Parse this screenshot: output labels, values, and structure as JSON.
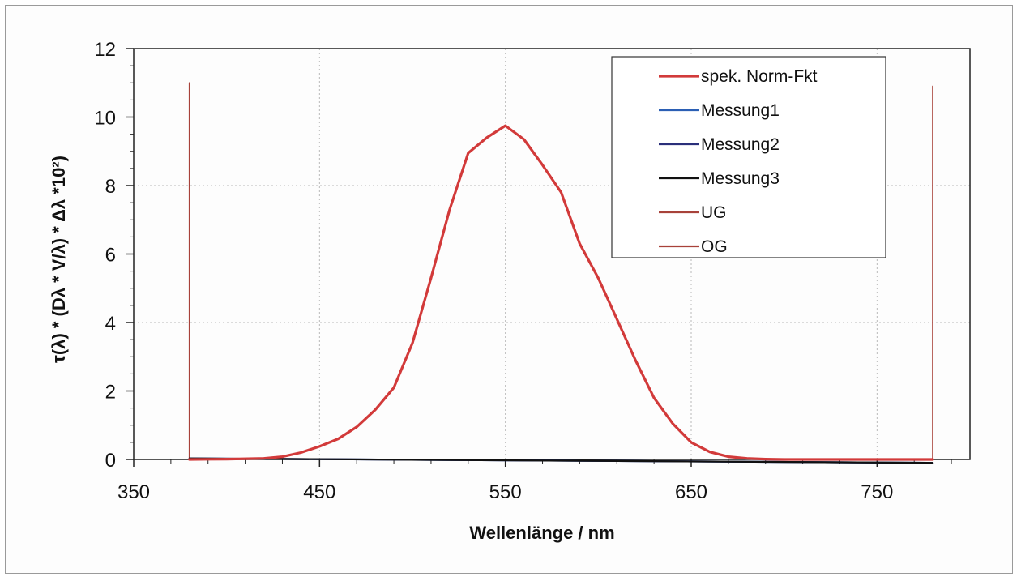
{
  "chart_data": {
    "type": "line",
    "title": "",
    "xlabel": "Wellenlänge / nm",
    "ylabel": "τ(λ) * (Dλ * V/λ) * Δλ *10²)",
    "xlim": [
      350,
      800
    ],
    "ylim": [
      0,
      12
    ],
    "x_ticks": [
      "350",
      "450",
      "550",
      "650",
      "750"
    ],
    "y_ticks": [
      "0",
      "2",
      "4",
      "6",
      "8",
      "10",
      "12"
    ],
    "grid": true,
    "legend_position": "top-right",
    "series": [
      {
        "name": "spek. Norm-Fkt",
        "color": "#d23a3a",
        "x": [
          380,
          400,
          420,
          430,
          440,
          450,
          460,
          470,
          480,
          490,
          500,
          510,
          520,
          530,
          540,
          550,
          560,
          570,
          580,
          590,
          600,
          610,
          620,
          630,
          640,
          650,
          660,
          670,
          680,
          690,
          700,
          720,
          740,
          760,
          780
        ],
        "y": [
          0,
          0.01,
          0.03,
          0.08,
          0.2,
          0.38,
          0.6,
          0.95,
          1.45,
          2.1,
          3.4,
          5.3,
          7.3,
          8.95,
          9.4,
          9.75,
          9.35,
          8.6,
          7.8,
          6.3,
          5.3,
          4.1,
          2.9,
          1.8,
          1.05,
          0.5,
          0.22,
          0.08,
          0.03,
          0.01,
          0,
          0,
          0,
          0,
          0
        ]
      },
      {
        "name": "Messung1",
        "color": "#2b5fb4",
        "x": [
          380,
          780
        ],
        "y": [
          0.03,
          -0.1
        ]
      },
      {
        "name": "Messung2",
        "color": "#2a2f7a",
        "x": [
          380,
          780
        ],
        "y": [
          0.03,
          -0.1
        ]
      },
      {
        "name": "Messung3",
        "color": "#111111",
        "x": [
          380,
          780
        ],
        "y": [
          0.03,
          -0.1
        ]
      },
      {
        "name": "UG",
        "color": "#a8423a",
        "x": [
          380,
          380
        ],
        "y": [
          0,
          11
        ]
      },
      {
        "name": "OG",
        "color": "#a8423a",
        "x": [
          780,
          780
        ],
        "y": [
          0,
          10.9
        ]
      }
    ]
  }
}
